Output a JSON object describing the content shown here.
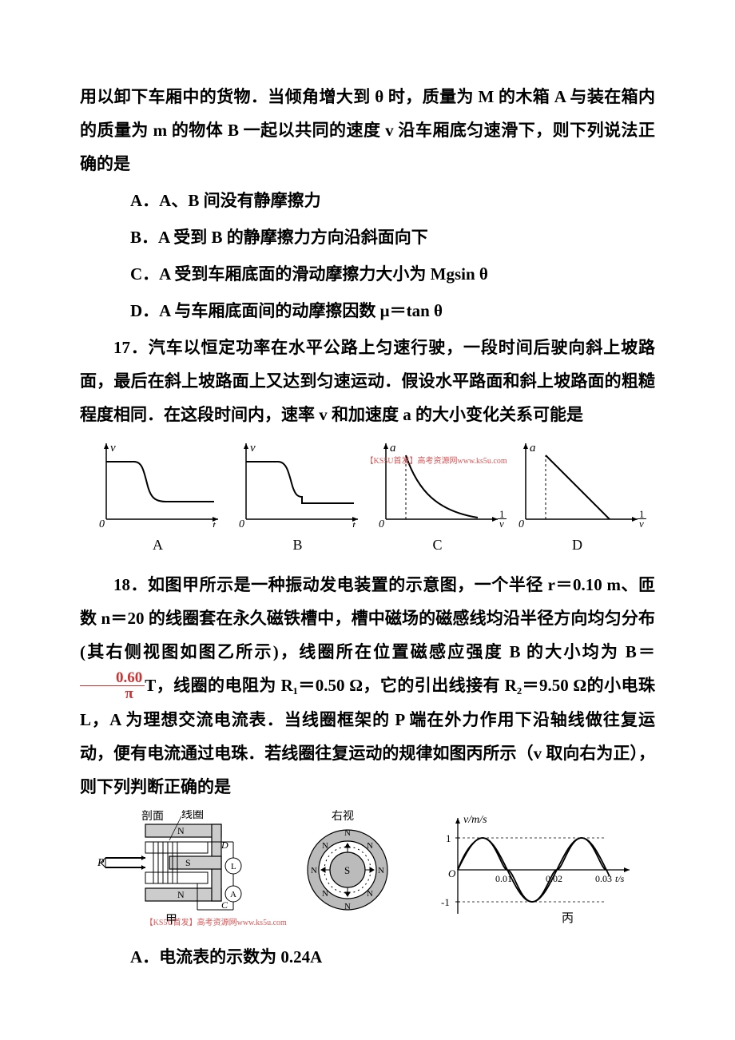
{
  "q16_continuation": {
    "p1": "用以卸下车厢中的货物．当倾角增大到 θ 时，质量为 M 的木箱 A 与装在箱内的质量为 m 的物体 B 一起以共同的速度 v 沿车厢底匀速滑下，则下列说法正确的是",
    "optA": "A．A、B 间没有静摩擦力",
    "optB": "B．A 受到 B 的静摩擦力方向沿斜面向下",
    "optC": "C．A 受到车厢底面的滑动摩擦力大小为 Mgsin θ",
    "optD": "D．A 与车厢底面间的动摩擦因数 μ＝tan θ"
  },
  "q17": {
    "p1": "17．汽车以恒定功率在水平公路上匀速行驶，一段时间后驶向斜上坡路面，最后在斜上坡路面上又达到匀速运动．假设水平路面和斜上坡路面的粗糙程度相同．在这段时间内，速率 v 和加速度 a 的大小变化关系可能是",
    "graphs": {
      "type": "line-sketch-row",
      "stroke_color": "#000000",
      "stroke_width": 1.5,
      "axis_color": "#000000",
      "items": [
        {
          "label": "A",
          "ylabel": "v",
          "xlabel": "t",
          "curve": "high-flat-drop-flat-smooth"
        },
        {
          "label": "B",
          "ylabel": "v",
          "xlabel": "t",
          "curve": "high-flat-drop-step-flat"
        },
        {
          "label": "C",
          "ylabel": "a",
          "xlabel": "1/v",
          "curve": "zero-then-concave-decay",
          "dashed_vline": true
        },
        {
          "label": "D",
          "ylabel": "a",
          "xlabel": "1/v",
          "curve": "zero-then-linear-down",
          "dashed_vline": true
        }
      ]
    }
  },
  "q18": {
    "p1_pre": "18．如图甲所示是一种振动发电装置的示意图，一个半径 r＝0.10 m、匝数 n＝20 的线圈套在永久磁铁槽中，槽中磁场的磁感线均沿半径方向均匀分布(其右侧视图如图乙所示)，线圈所在位置磁感应强度 B 的大小均为 B＝",
    "frac_num": "0.60",
    "frac_den": "π",
    "p1_post": "T，线圈的电阻为 R₁＝0.50 Ω，它的引出线接有 R₂＝9.50 Ω的小电珠 L，A 为理想交流电流表．当线圈框架的 P 端在外力作用下沿轴线做往复运动，便有电流通过电珠．若线圈往复运动的规律如图丙所示（v 取向右为正），则下列判断正确的是",
    "optA": "A．电流表的示数为 0.24A",
    "figure": {
      "type": "device-and-graph",
      "labels": {
        "section": "剖面",
        "coil": "线圈",
        "side_view": "右视",
        "P": "P",
        "D": "D",
        "C": "C",
        "L": "L",
        "A": "A",
        "N": "N",
        "S": "S",
        "jia": "甲",
        "bing": "丙"
      },
      "sine": {
        "ylabel": "v/m/s",
        "xlabel_unit": "t/s",
        "xticks": [
          "0.01",
          "0.02",
          "0.03"
        ],
        "yticks": [
          "1",
          "-1"
        ],
        "amplitude": 1,
        "period_s": 0.02,
        "line_color": "#000000",
        "grid_dash_color": "#000000"
      }
    }
  },
  "watermark": "【KS5U首发】高考资源网www.ks5u.com",
  "colors": {
    "text": "#000000",
    "bg": "#ffffff",
    "watermark": "#dd5555",
    "fraction": "#cc3333"
  }
}
